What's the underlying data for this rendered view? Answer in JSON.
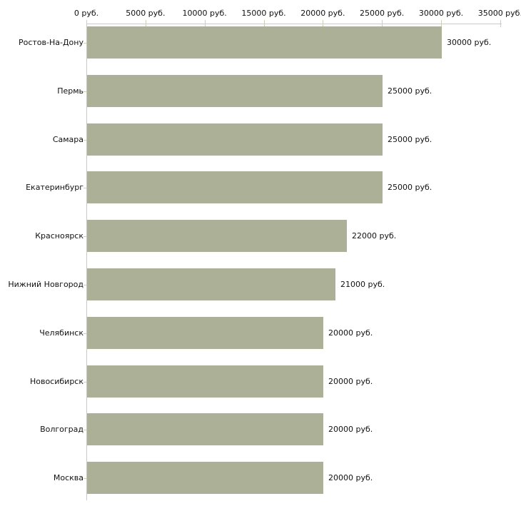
{
  "chart_data": {
    "type": "bar",
    "orientation": "horizontal",
    "title": "",
    "xlabel": "",
    "ylabel": "",
    "xlim": [
      0,
      35000
    ],
    "grid": false,
    "legend": null,
    "categories": [
      "Ростов-На-Дону",
      "Пермь",
      "Самара",
      "Екатеринбург",
      "Красноярск",
      "Нижний Новгород",
      "Челябинск",
      "Новосибирск",
      "Волгоград",
      "Москва"
    ],
    "values": [
      30000,
      25000,
      25000,
      25000,
      22000,
      21000,
      20000,
      20000,
      20000,
      20000
    ],
    "value_labels": [
      "30000 руб.",
      "25000 руб.",
      "25000 руб.",
      "25000 руб.",
      "22000 руб.",
      "21000 руб.",
      "20000 руб.",
      "20000 руб.",
      "20000 руб.",
      "20000 руб."
    ],
    "x_ticks": [
      {
        "value": 0,
        "label": "0 руб."
      },
      {
        "value": 5000,
        "label": "5000 руб."
      },
      {
        "value": 10000,
        "label": "10000 руб."
      },
      {
        "value": 15000,
        "label": "15000 руб."
      },
      {
        "value": 20000,
        "label": "20000 руб."
      },
      {
        "value": 25000,
        "label": "25000 руб."
      },
      {
        "value": 30000,
        "label": "30000 руб."
      },
      {
        "value": 35000,
        "label": "35000 руб."
      }
    ],
    "colors": {
      "bar": "#abb096",
      "axis": "#c9c9c9",
      "tick_mark": "#cdd0b4",
      "text": "#111111",
      "background": "#ffffff"
    }
  }
}
